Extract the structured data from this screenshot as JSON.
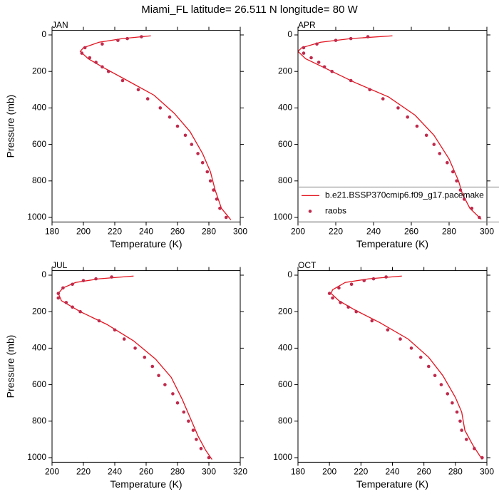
{
  "title": "Miami_FL  latitude= 26.511 N longitude= 80 W",
  "chart_data": [
    {
      "type": "line",
      "title": "JAN",
      "xlabel": "Temperature (K)",
      "ylabel": "Pressure (mb)",
      "xlim": [
        180,
        300
      ],
      "xticks": [
        180,
        200,
        220,
        240,
        260,
        280,
        300
      ],
      "ylim": [
        -25,
        1025
      ],
      "yticks": [
        0,
        200,
        400,
        600,
        800,
        1000
      ],
      "y_inverted": true,
      "series": [
        {
          "mode": "line",
          "color": "#e3141f",
          "x": [
            243,
            225,
            210,
            200,
            198,
            203,
            213,
            228,
            245,
            258,
            268,
            276,
            281,
            284,
            288,
            294
          ],
          "y": [
            5,
            20,
            40,
            70,
            90,
            130,
            180,
            250,
            330,
            430,
            530,
            650,
            750,
            850,
            950,
            1013
          ]
        },
        {
          "mode": "markers",
          "color": "#c02a4c",
          "x": [
            237,
            228,
            222,
            212,
            201,
            199,
            204,
            208,
            212,
            216,
            225,
            235,
            241,
            249,
            255,
            260,
            265,
            269,
            273,
            276,
            279,
            281,
            283,
            285,
            287,
            291
          ],
          "y": [
            10,
            20,
            30,
            50,
            70,
            100,
            125,
            150,
            175,
            200,
            250,
            300,
            350,
            400,
            450,
            500,
            550,
            600,
            650,
            700,
            750,
            800,
            850,
            900,
            950,
            1000
          ]
        }
      ]
    },
    {
      "type": "line",
      "title": "APR",
      "xlabel": "Temperature (K)",
      "xlim": [
        200,
        300
      ],
      "xticks": [
        200,
        220,
        240,
        260,
        280,
        300
      ],
      "ylim": [
        -25,
        1025
      ],
      "yticks": [
        0,
        200,
        400,
        600,
        800,
        1000
      ],
      "y_inverted": true,
      "legend": "lower-right",
      "series": [
        {
          "name": "b.e21.BSSP370cmip6.f09_g17.pacemake",
          "mode": "line",
          "color": "#e3141f",
          "x": [
            250,
            228,
            212,
            202,
            200,
            204,
            214,
            230,
            248,
            262,
            272,
            280,
            285,
            287,
            291,
            297
          ],
          "y": [
            5,
            20,
            40,
            70,
            90,
            130,
            180,
            260,
            340,
            440,
            550,
            680,
            800,
            870,
            950,
            1010
          ]
        },
        {
          "name": "raobs",
          "mode": "markers",
          "color": "#c02a4c",
          "x": [
            237,
            228,
            220,
            210,
            203,
            203,
            207,
            211,
            214,
            218,
            228,
            238,
            245,
            253,
            258,
            263,
            268,
            272,
            275,
            279,
            282,
            284,
            286,
            288,
            292,
            296
          ],
          "y": [
            10,
            20,
            30,
            50,
            70,
            100,
            125,
            150,
            175,
            200,
            250,
            300,
            350,
            400,
            450,
            500,
            550,
            600,
            650,
            700,
            750,
            800,
            850,
            900,
            950,
            1000
          ]
        }
      ]
    },
    {
      "type": "line",
      "title": "JUL",
      "xlabel": "Temperature (K)",
      "ylabel": "Pressure (mb)",
      "xlim": [
        200,
        320
      ],
      "xticks": [
        200,
        220,
        240,
        260,
        280,
        300,
        320
      ],
      "ylim": [
        -25,
        1025
      ],
      "yticks": [
        0,
        200,
        400,
        600,
        800,
        1000
      ],
      "y_inverted": true,
      "series": [
        {
          "mode": "line",
          "color": "#e3141f",
          "x": [
            252,
            230,
            215,
            207,
            204,
            206,
            218,
            235,
            252,
            266,
            276,
            283,
            288,
            293,
            298,
            302
          ],
          "y": [
            5,
            20,
            40,
            70,
            100,
            140,
            200,
            270,
            360,
            460,
            560,
            680,
            780,
            880,
            960,
            1010
          ]
        },
        {
          "mode": "markers",
          "color": "#c02a4c",
          "x": [
            238,
            228,
            220,
            213,
            207,
            204,
            204,
            209,
            213,
            218,
            230,
            240,
            246,
            253,
            259,
            264,
            268,
            272,
            277,
            280,
            284,
            287,
            290,
            292,
            295,
            300
          ],
          "y": [
            10,
            20,
            30,
            50,
            70,
            100,
            125,
            150,
            175,
            200,
            250,
            300,
            350,
            400,
            450,
            500,
            550,
            600,
            650,
            700,
            750,
            800,
            850,
            900,
            950,
            1000
          ]
        }
      ]
    },
    {
      "type": "line",
      "title": "OCT",
      "xlabel": "Temperature (K)",
      "xlim": [
        180,
        300
      ],
      "xticks": [
        180,
        200,
        220,
        240,
        260,
        280,
        300
      ],
      "ylim": [
        -25,
        1025
      ],
      "yticks": [
        0,
        200,
        400,
        600,
        800,
        1000
      ],
      "y_inverted": true,
      "series": [
        {
          "mode": "line",
          "color": "#e3141f",
          "x": [
            246,
            225,
            210,
            202,
            201,
            206,
            216,
            232,
            250,
            263,
            272,
            280,
            284,
            286,
            291,
            297
          ],
          "y": [
            5,
            20,
            40,
            80,
            100,
            140,
            190,
            260,
            350,
            450,
            550,
            670,
            750,
            850,
            930,
            1010
          ]
        },
        {
          "mode": "markers",
          "color": "#c02a4c",
          "x": [
            236,
            228,
            222,
            214,
            206,
            200,
            202,
            207,
            212,
            217,
            227,
            237,
            245,
            252,
            258,
            263,
            267,
            271,
            275,
            278,
            281,
            283,
            284,
            287,
            292,
            297
          ],
          "y": [
            10,
            20,
            30,
            50,
            70,
            100,
            125,
            150,
            175,
            200,
            250,
            300,
            350,
            400,
            450,
            500,
            550,
            600,
            650,
            700,
            750,
            800,
            850,
            900,
            950,
            1000
          ]
        }
      ]
    }
  ]
}
